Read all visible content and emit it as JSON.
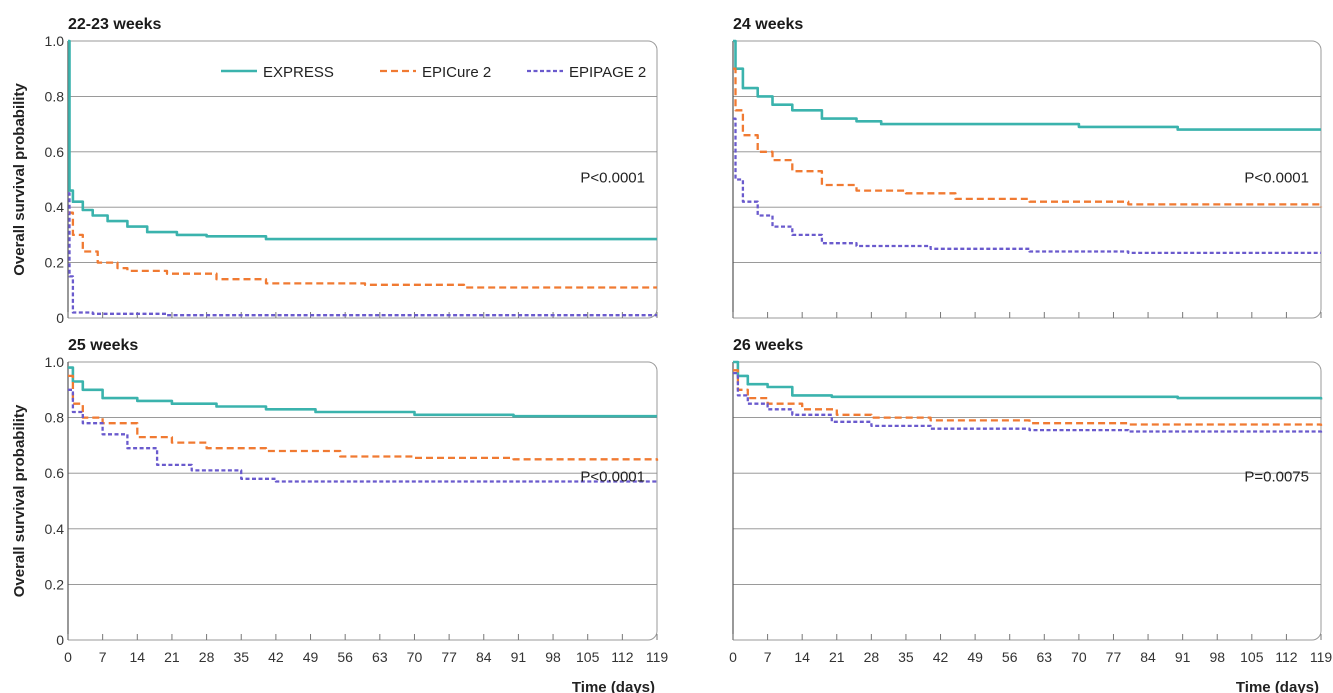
{
  "chart_data": {
    "type": "line",
    "series_styles": [
      {
        "name": "EXPRESS",
        "color": "#3bb3ad",
        "dash": "solid"
      },
      {
        "name": "EPICure 2",
        "color": "#f07a32",
        "dash": "dashed"
      },
      {
        "name": "EPIPAGE 2",
        "color": "#6a5acd",
        "dash": "dashed"
      }
    ],
    "legend_position": "top-right of first panel",
    "ylabel": "Overall survival probability",
    "xlabel": "Time (days)",
    "xticks": [
      "0",
      "7",
      "14",
      "21",
      "28",
      "35",
      "42",
      "49",
      "56",
      "63",
      "70",
      "77",
      "84",
      "91",
      "98",
      "105",
      "112",
      "119"
    ],
    "yticks": [
      "0",
      "0.2",
      "0.4",
      "0.6",
      "0.8",
      "1.0"
    ],
    "xlim": [
      0,
      119
    ],
    "ylim": [
      0,
      1.0
    ],
    "grid": "horizontal",
    "panels": [
      {
        "title": "22-23 weeks",
        "pvalue": "P<0.0001",
        "series": [
          {
            "name": "EXPRESS",
            "points": [
              [
                0,
                1.0
              ],
              [
                0.3,
                0.46
              ],
              [
                1,
                0.42
              ],
              [
                3,
                0.39
              ],
              [
                5,
                0.37
              ],
              [
                8,
                0.35
              ],
              [
                12,
                0.33
              ],
              [
                16,
                0.31
              ],
              [
                22,
                0.3
              ],
              [
                28,
                0.295
              ],
              [
                40,
                0.285
              ],
              [
                60,
                0.285
              ],
              [
                119,
                0.285
              ]
            ]
          },
          {
            "name": "EPICure 2",
            "points": [
              [
                0,
                0.38
              ],
              [
                1,
                0.3
              ],
              [
                3,
                0.24
              ],
              [
                6,
                0.2
              ],
              [
                10,
                0.18
              ],
              [
                12,
                0.17
              ],
              [
                20,
                0.16
              ],
              [
                30,
                0.14
              ],
              [
                40,
                0.125
              ],
              [
                60,
                0.12
              ],
              [
                80,
                0.11
              ],
              [
                119,
                0.11
              ]
            ]
          },
          {
            "name": "EPIPAGE 2",
            "points": [
              [
                0,
                0.45
              ],
              [
                0.3,
                0.15
              ],
              [
                1,
                0.02
              ],
              [
                5,
                0.015
              ],
              [
                20,
                0.01
              ],
              [
                119,
                0.01
              ]
            ]
          }
        ]
      },
      {
        "title": "24 weeks",
        "pvalue": "P<0.0001",
        "series": [
          {
            "name": "EXPRESS",
            "points": [
              [
                0,
                1.0
              ],
              [
                0.5,
                0.9
              ],
              [
                2,
                0.83
              ],
              [
                5,
                0.8
              ],
              [
                8,
                0.77
              ],
              [
                12,
                0.75
              ],
              [
                18,
                0.72
              ],
              [
                25,
                0.71
              ],
              [
                30,
                0.7
              ],
              [
                60,
                0.7
              ],
              [
                70,
                0.69
              ],
              [
                90,
                0.68
              ],
              [
                119,
                0.68
              ]
            ]
          },
          {
            "name": "EPICure 2",
            "points": [
              [
                0,
                0.9
              ],
              [
                0.5,
                0.75
              ],
              [
                2,
                0.66
              ],
              [
                5,
                0.6
              ],
              [
                8,
                0.57
              ],
              [
                12,
                0.53
              ],
              [
                18,
                0.48
              ],
              [
                25,
                0.46
              ],
              [
                35,
                0.45
              ],
              [
                45,
                0.43
              ],
              [
                60,
                0.42
              ],
              [
                80,
                0.41
              ],
              [
                119,
                0.4
              ]
            ]
          },
          {
            "name": "EPIPAGE 2",
            "points": [
              [
                0,
                0.72
              ],
              [
                0.5,
                0.5
              ],
              [
                2,
                0.42
              ],
              [
                5,
                0.37
              ],
              [
                8,
                0.33
              ],
              [
                12,
                0.3
              ],
              [
                18,
                0.27
              ],
              [
                25,
                0.26
              ],
              [
                40,
                0.25
              ],
              [
                60,
                0.24
              ],
              [
                80,
                0.235
              ],
              [
                119,
                0.235
              ]
            ]
          }
        ]
      },
      {
        "title": "25 weeks",
        "pvalue": "P<0.0001",
        "series": [
          {
            "name": "EXPRESS",
            "points": [
              [
                0,
                0.98
              ],
              [
                1,
                0.93
              ],
              [
                3,
                0.9
              ],
              [
                7,
                0.87
              ],
              [
                14,
                0.86
              ],
              [
                21,
                0.85
              ],
              [
                30,
                0.84
              ],
              [
                40,
                0.83
              ],
              [
                50,
                0.82
              ],
              [
                70,
                0.81
              ],
              [
                90,
                0.805
              ],
              [
                119,
                0.805
              ]
            ]
          },
          {
            "name": "EPICure 2",
            "points": [
              [
                0,
                0.95
              ],
              [
                1,
                0.85
              ],
              [
                3,
                0.8
              ],
              [
                7,
                0.78
              ],
              [
                14,
                0.73
              ],
              [
                21,
                0.71
              ],
              [
                28,
                0.69
              ],
              [
                40,
                0.68
              ],
              [
                55,
                0.66
              ],
              [
                70,
                0.655
              ],
              [
                90,
                0.65
              ],
              [
                119,
                0.645
              ]
            ]
          },
          {
            "name": "EPIPAGE 2",
            "points": [
              [
                0,
                0.9
              ],
              [
                1,
                0.82
              ],
              [
                3,
                0.78
              ],
              [
                7,
                0.74
              ],
              [
                12,
                0.69
              ],
              [
                18,
                0.63
              ],
              [
                25,
                0.61
              ],
              [
                35,
                0.58
              ],
              [
                42,
                0.57
              ],
              [
                60,
                0.57
              ],
              [
                90,
                0.57
              ],
              [
                119,
                0.565
              ]
            ]
          }
        ]
      },
      {
        "title": "26 weeks",
        "pvalue": "P=0.0075",
        "series": [
          {
            "name": "EXPRESS",
            "points": [
              [
                0,
                1.0
              ],
              [
                1,
                0.95
              ],
              [
                3,
                0.92
              ],
              [
                7,
                0.91
              ],
              [
                12,
                0.88
              ],
              [
                20,
                0.875
              ],
              [
                40,
                0.875
              ],
              [
                60,
                0.875
              ],
              [
                80,
                0.875
              ],
              [
                90,
                0.87
              ],
              [
                119,
                0.865
              ]
            ]
          },
          {
            "name": "EPICure 2",
            "points": [
              [
                0,
                0.97
              ],
              [
                1,
                0.9
              ],
              [
                3,
                0.87
              ],
              [
                7,
                0.85
              ],
              [
                14,
                0.83
              ],
              [
                21,
                0.81
              ],
              [
                28,
                0.8
              ],
              [
                40,
                0.79
              ],
              [
                60,
                0.78
              ],
              [
                80,
                0.775
              ],
              [
                119,
                0.77
              ]
            ]
          },
          {
            "name": "EPIPAGE 2",
            "points": [
              [
                0,
                0.96
              ],
              [
                1,
                0.88
              ],
              [
                3,
                0.85
              ],
              [
                7,
                0.83
              ],
              [
                12,
                0.81
              ],
              [
                20,
                0.785
              ],
              [
                28,
                0.77
              ],
              [
                40,
                0.76
              ],
              [
                60,
                0.755
              ],
              [
                80,
                0.75
              ],
              [
                119,
                0.745
              ]
            ]
          }
        ]
      }
    ]
  }
}
